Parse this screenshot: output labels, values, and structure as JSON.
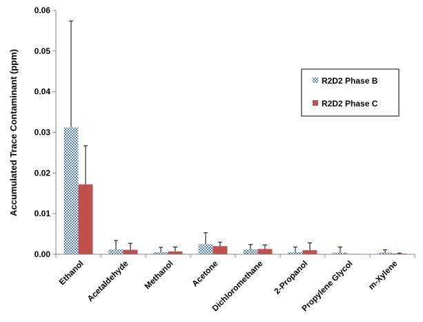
{
  "chart_data": {
    "type": "bar",
    "title": "",
    "xlabel": "",
    "ylabel": "Accumulated Trace Contaminant (ppm)",
    "ylim": [
      0,
      0.06
    ],
    "yticks": [
      "0.00",
      "0.01",
      "0.02",
      "0.03",
      "0.04",
      "0.05",
      "0.06"
    ],
    "grid": false,
    "legend_position": "right",
    "categories": [
      "Ethanol",
      "Acetaldehyde",
      "Methanol",
      "Acetone",
      "Dichloromethane",
      "2-Propanol",
      "Propylene Glycol",
      "m-Xylene"
    ],
    "series": [
      {
        "name": "R2D2 Phase B",
        "pattern": "blue-checkered",
        "color": "#4f81bd",
        "values": [
          0.0312,
          0.0012,
          0.0005,
          0.0025,
          0.0012,
          0.0005,
          0.0004,
          0.0004
        ],
        "errors": [
          0.0262,
          0.0022,
          0.0012,
          0.0028,
          0.0012,
          0.0013,
          0.0014,
          0.0007
        ]
      },
      {
        "name": "R2D2 Phase C",
        "pattern": "solid",
        "color": "#c0504d",
        "values": [
          0.0172,
          0.0011,
          0.0007,
          0.002,
          0.0013,
          0.001,
          0.0001,
          0.0002
        ],
        "errors": [
          0.0095,
          0.0016,
          0.0011,
          0.001,
          0.001,
          0.0018,
          0.0,
          0.0001
        ]
      }
    ]
  }
}
